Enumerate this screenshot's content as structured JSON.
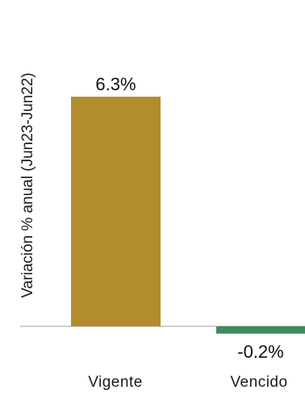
{
  "chart_data": {
    "type": "bar",
    "categories": [
      "Vigente",
      "Vencido"
    ],
    "values": [
      6.3,
      -0.2
    ],
    "data_labels": [
      "6.3%",
      "-0.2%"
    ],
    "ylabel": "Variación % anual (Jun23-Jun22)",
    "colors": [
      "#b38c2d",
      "#3f8a5f"
    ],
    "baseline_color": "#cfcfcf",
    "grid": false,
    "legend": "none"
  }
}
